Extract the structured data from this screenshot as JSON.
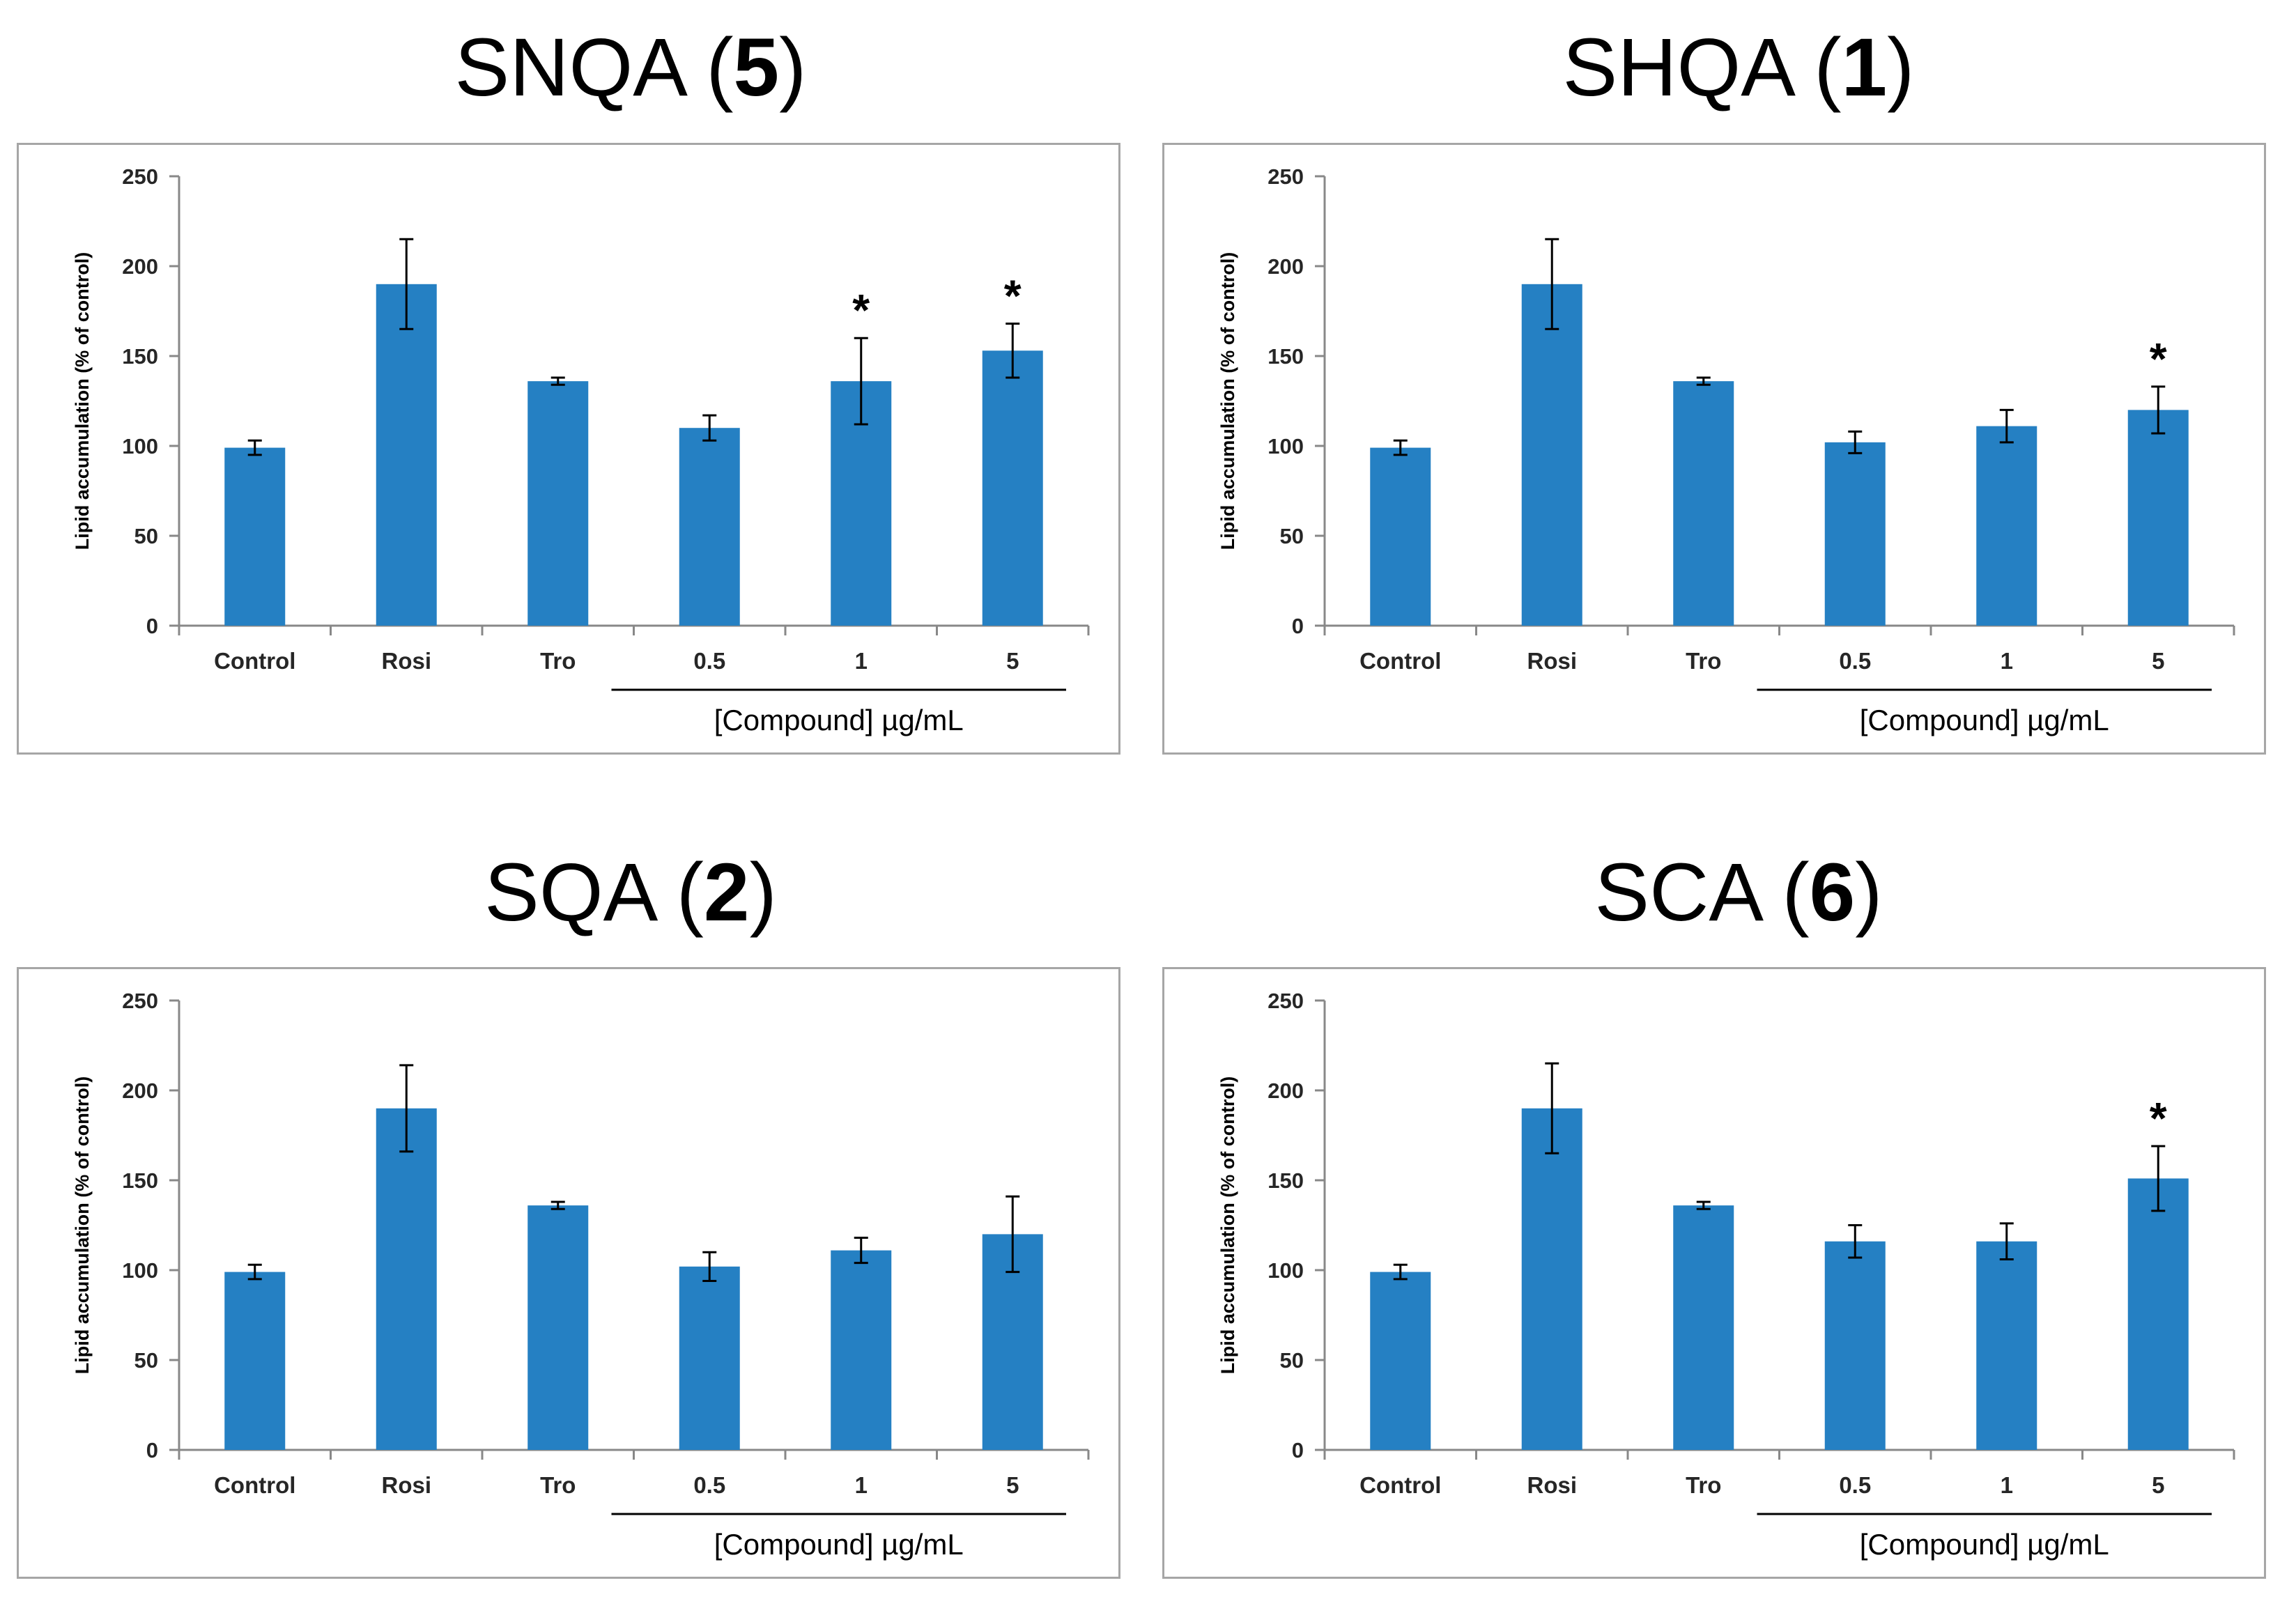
{
  "figure": {
    "y_axis_label": "Lipid accumulation (% of control)",
    "group_label": "[Compound] µg/mL",
    "bar_color": "#2580c3",
    "axis_color": "#888888"
  },
  "chart_data": [
    {
      "type": "bar",
      "title_name": "SNQA",
      "title_number": "5",
      "categories": [
        "Control",
        "Rosi",
        "Tro",
        "0.5",
        "1",
        "5"
      ],
      "values": [
        99,
        190,
        136,
        110,
        136,
        153
      ],
      "errors": [
        4,
        25,
        2,
        7,
        24,
        15
      ],
      "significant": [
        "",
        "",
        "",
        "",
        "*",
        "*"
      ],
      "ylim": [
        0,
        250
      ],
      "yticks": [
        "0",
        "50",
        "100",
        "150",
        "200",
        "250"
      ],
      "ylabel": "Lipid accumulation (% of control)",
      "xlabel": "[Compound] µg/mL"
    },
    {
      "type": "bar",
      "title_name": "SHQA",
      "title_number": "1",
      "categories": [
        "Control",
        "Rosi",
        "Tro",
        "0.5",
        "1",
        "5"
      ],
      "values": [
        99,
        190,
        136,
        102,
        111,
        120
      ],
      "errors": [
        4,
        25,
        2,
        6,
        9,
        13
      ],
      "significant": [
        "",
        "",
        "",
        "",
        "",
        "*"
      ],
      "ylim": [
        0,
        250
      ],
      "yticks": [
        "0",
        "50",
        "100",
        "150",
        "200",
        "250"
      ],
      "ylabel": "Lipid accumulation (% of control)",
      "xlabel": "[Compound] µg/mL"
    },
    {
      "type": "bar",
      "title_name": "SQA",
      "title_number": "2",
      "categories": [
        "Control",
        "Rosi",
        "Tro",
        "0.5",
        "1",
        "5"
      ],
      "values": [
        99,
        190,
        136,
        102,
        111,
        120
      ],
      "errors": [
        4,
        24,
        2,
        8,
        7,
        21
      ],
      "significant": [
        "",
        "",
        "",
        "",
        "",
        ""
      ],
      "ylim": [
        0,
        250
      ],
      "yticks": [
        "0",
        "50",
        "100",
        "150",
        "200",
        "250"
      ],
      "ylabel": "Lipid accumulation (% of control)",
      "xlabel": "[Compound] µg/mL"
    },
    {
      "type": "bar",
      "title_name": "SCA",
      "title_number": "6",
      "categories": [
        "Control",
        "Rosi",
        "Tro",
        "0.5",
        "1",
        "5"
      ],
      "values": [
        99,
        190,
        136,
        116,
        116,
        151
      ],
      "errors": [
        4,
        25,
        2,
        9,
        10,
        18
      ],
      "significant": [
        "",
        "",
        "",
        "",
        "",
        "*"
      ],
      "ylim": [
        0,
        250
      ],
      "yticks": [
        "0",
        "50",
        "100",
        "150",
        "200",
        "250"
      ],
      "ylabel": "Lipid accumulation (% of control)",
      "xlabel": "[Compound] µg/mL"
    }
  ]
}
